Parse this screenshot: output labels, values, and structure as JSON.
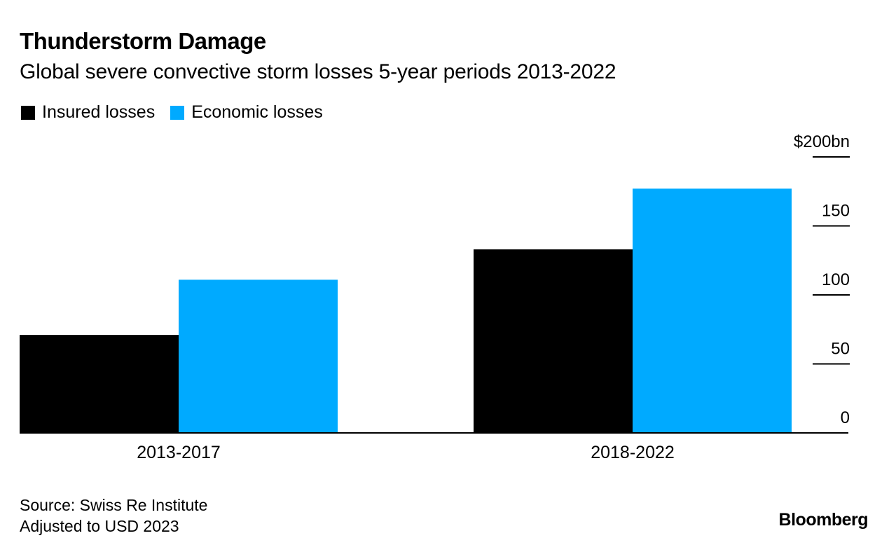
{
  "title": "Thunderstorm Damage",
  "subtitle": "Global severe convective storm losses 5-year periods 2013-2022",
  "legend": [
    {
      "label": "Insured losses",
      "color": "#000000"
    },
    {
      "label": "Economic losses",
      "color": "#00aaff"
    }
  ],
  "chart_data": {
    "type": "bar",
    "title": "Thunderstorm Damage",
    "subtitle": "Global severe convective storm losses 5-year periods 2013-2022",
    "categories": [
      "2013-2017",
      "2018-2022"
    ],
    "series": [
      {
        "name": "Insured losses",
        "color": "#000000",
        "values": [
          71,
          133
        ]
      },
      {
        "name": "Economic losses",
        "color": "#00aaff",
        "values": [
          111,
          177
        ]
      }
    ],
    "ylim": [
      0,
      200
    ],
    "yticks": [
      0,
      50,
      100,
      150,
      200
    ],
    "ytick_labels": [
      "0",
      "50",
      "100",
      "150",
      "$200bn"
    ],
    "xlabel": "",
    "ylabel": "",
    "legend_position": "top-left",
    "axis_position": "right"
  },
  "footer": {
    "source": "Source: Swiss Re Institute",
    "note": "Adjusted to USD 2023"
  },
  "brand": "Bloomberg"
}
